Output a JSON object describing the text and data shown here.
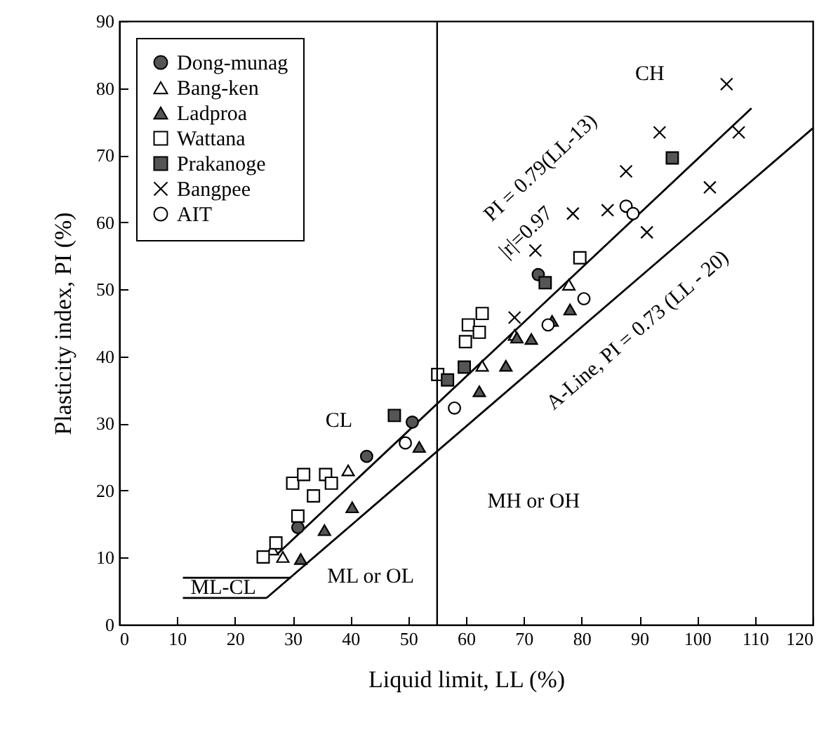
{
  "chart_data": {
    "type": "scatter",
    "xlabel": "Liquid limit, LL (%)",
    "ylabel": "Plasticity index, PI (%)",
    "xlim": [
      0,
      120
    ],
    "xticks": [
      0,
      10,
      20,
      30,
      40,
      50,
      60,
      70,
      80,
      90,
      100,
      110,
      120
    ],
    "ylim": [
      0,
      90
    ],
    "yticks": [
      0,
      10,
      20,
      30,
      40,
      50,
      60,
      70,
      80,
      90
    ],
    "grid": false,
    "legend": "top left",
    "series": [
      {
        "name": "Dong-munag",
        "color": "#555555",
        "marker": "circle",
        "x": [
          30.9,
          42.8,
          50.7,
          72.5
        ],
        "values": [
          14.5,
          25.1,
          30.2,
          52.2
        ]
      },
      {
        "name": "Bang-ken",
        "color": "#ffffff",
        "marker": "triangle",
        "x": [
          26.5,
          28.3,
          39.6,
          62.8,
          68.4,
          77.8
        ],
        "values": [
          11.2,
          10.1,
          23,
          38.6,
          43.2,
          50.7
        ]
      },
      {
        "name": "Ladproa",
        "color": "#555555",
        "marker": "triangle",
        "x": [
          31.4,
          35.5,
          40.3,
          51.9,
          62.3,
          66.9,
          68.8,
          71.3,
          74.9,
          78
        ],
        "values": [
          9.8,
          14.1,
          17.5,
          26.5,
          34.8,
          38.6,
          42.8,
          42.6,
          45.3,
          47
        ]
      },
      {
        "name": "Wattana",
        "color": "#ffffff",
        "marker": "square",
        "x": [
          24.9,
          27.1,
          30.9,
          30,
          31.9,
          33.6,
          35.7,
          36.7,
          55.1,
          59.9,
          60.4,
          62.3,
          62.8,
          79.7
        ],
        "values": [
          10.1,
          12.2,
          16.2,
          21.1,
          22.4,
          19.2,
          22.4,
          21.1,
          37.3,
          42.2,
          44.7,
          43.6,
          46.4,
          54.7
        ]
      },
      {
        "name": "Prakanoge",
        "color": "#555555",
        "marker": "square",
        "x": [
          47.6,
          56.8,
          59.7,
          73.7,
          95.7
        ],
        "values": [
          31.2,
          36.5,
          38.4,
          51,
          69.6
        ]
      },
      {
        "name": "Bangpee",
        "color": "#000000",
        "marker": "cross",
        "x": [
          68.4,
          72,
          78.5,
          84.5,
          87.7,
          91.3,
          93.5,
          102.2,
          105.1,
          107.2
        ],
        "values": [
          45.8,
          55.8,
          61.3,
          61.8,
          67.6,
          58.5,
          73.4,
          65.2,
          80.6,
          73.4
        ]
      },
      {
        "name": "AIT",
        "color": "#ffffff",
        "marker": "circle",
        "x": [
          49.5,
          58,
          74.2,
          80.4,
          87.7,
          88.9
        ],
        "values": [
          27.1,
          32.3,
          44.7,
          48.6,
          62.4,
          61.3
        ]
      },
      {
        "type": "line",
        "color": "#000000",
        "x": [
          27.3,
          109.4
        ],
        "values": [
          10.5,
          77
        ]
      },
      {
        "type": "line",
        "color": "#000000",
        "x": [
          25.5,
          120
        ],
        "values": [
          4,
          74
        ]
      },
      {
        "type": "line",
        "color": "#000000",
        "x": [
          11,
          29.7
        ],
        "values": [
          7,
          7
        ]
      },
      {
        "type": "line",
        "color": "#000000",
        "x": [
          11,
          25.5
        ],
        "values": [
          4,
          4
        ]
      }
    ],
    "ref_lines": [
      {
        "axis": "x",
        "value": 55,
        "color": "#000000"
      }
    ],
    "annotations": [
      "CL",
      "CH",
      "MH or OH",
      "ML or OL",
      "ML-CL",
      "PI = 0.79(LL-13)",
      "|r|=0.97",
      "A-Line, PI = 0.73 (LL - 20)"
    ]
  }
}
